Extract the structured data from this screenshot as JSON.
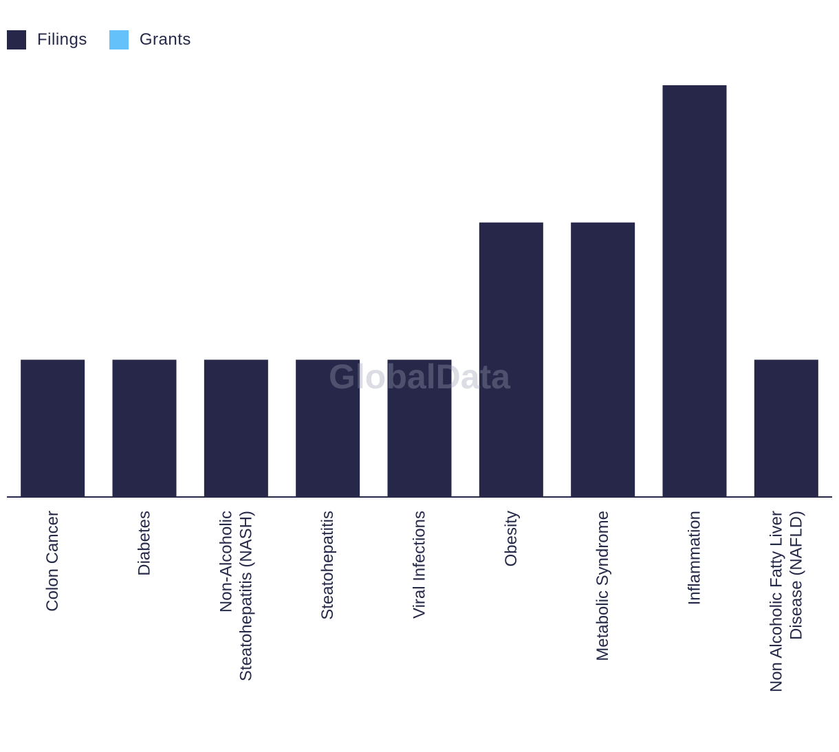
{
  "chart_data": {
    "type": "bar",
    "title": "",
    "xlabel": "",
    "ylabel": "",
    "grid": false,
    "legend_position": "top-left",
    "ylim": [
      0,
      3
    ],
    "categories": [
      [
        "Colon Cancer"
      ],
      [
        "Diabetes"
      ],
      [
        "Non-Alcoholic",
        "Steatohepatitis (NASH)"
      ],
      [
        "Steatohepatitis"
      ],
      [
        "Viral Infections"
      ],
      [
        "Obesity"
      ],
      [
        "Metabolic Syndrome"
      ],
      [
        "Inflammation"
      ],
      [
        "Non Alcoholic Fatty Liver",
        "Disease (NAFLD)"
      ]
    ],
    "series": [
      {
        "name": "Filings",
        "color": "#272849",
        "values": [
          1,
          1,
          1,
          1,
          1,
          2,
          2,
          3,
          1
        ]
      },
      {
        "name": "Grants",
        "color": "#64c1fa",
        "values": [
          0,
          0,
          0,
          0,
          0,
          0,
          0,
          0,
          0
        ]
      }
    ]
  },
  "legend": {
    "filings_label": "Filings",
    "grants_label": "Grants"
  },
  "watermark": "GlobalData"
}
